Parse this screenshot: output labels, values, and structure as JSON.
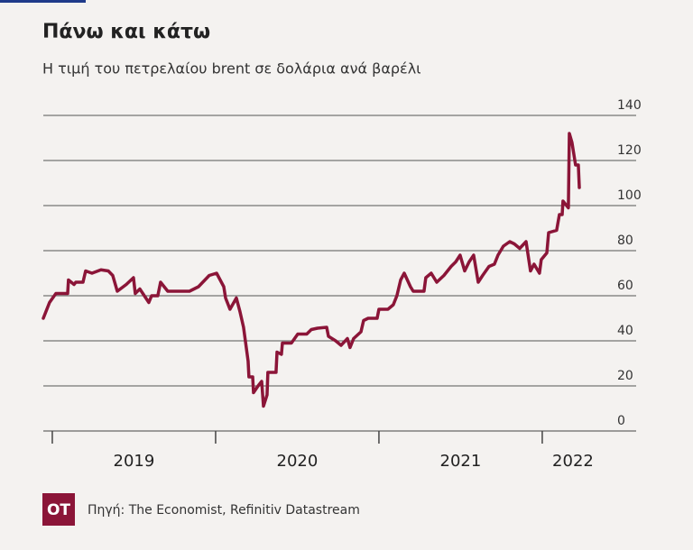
{
  "chart_data": {
    "type": "line",
    "title": "Πάνω και κάτω",
    "subtitle": "Η τιμή του πετρελαίου brent σε δολάρια ανά βαρέλι",
    "source": "Πηγή: The Economist, Refinitiv Datastream",
    "logo": "OT",
    "color": "#8b1538",
    "grid": true,
    "xlim": [
      2018.945,
      2022.575
    ],
    "xticks": [
      2019,
      2020,
      2021,
      2022
    ],
    "ylim": [
      0,
      140
    ],
    "yticks": [
      0,
      20,
      40,
      60,
      80,
      100,
      120,
      140
    ],
    "x": [
      2018.945,
      2018.983,
      2019.022,
      2019.094,
      2019.099,
      2019.133,
      2019.144,
      2019.188,
      2019.204,
      2019.243,
      2019.298,
      2019.343,
      2019.37,
      2019.398,
      2019.453,
      2019.497,
      2019.508,
      2019.536,
      2019.591,
      2019.608,
      2019.646,
      2019.663,
      2019.707,
      2019.84,
      2019.895,
      2019.961,
      2020.006,
      2020.05,
      2020.061,
      2020.088,
      2020.127,
      2020.149,
      2020.171,
      2020.199,
      2020.204,
      2020.227,
      2020.232,
      2020.26,
      2020.282,
      2020.293,
      2020.315,
      2020.32,
      2020.37,
      2020.376,
      2020.403,
      2020.409,
      2020.464,
      2020.503,
      2020.558,
      2020.586,
      2020.624,
      2020.68,
      2020.691,
      2020.735,
      2020.768,
      2020.807,
      2020.823,
      2020.845,
      2020.89,
      2020.906,
      2020.934,
      2020.989,
      2021.0,
      2021.055,
      2021.088,
      2021.11,
      2021.133,
      2021.155,
      2021.193,
      2021.21,
      2021.276,
      2021.287,
      2021.32,
      2021.354,
      2021.398,
      2021.442,
      2021.47,
      2021.497,
      2021.525,
      2021.552,
      2021.58,
      2021.608,
      2021.635,
      2021.674,
      2021.707,
      2021.729,
      2021.762,
      2021.801,
      2021.829,
      2021.862,
      2021.901,
      2021.928,
      2021.95,
      2021.983,
      2021.994,
      2022.028,
      2022.039,
      2022.088,
      2022.105,
      2022.122,
      2022.127,
      2022.16,
      2022.166,
      2022.182,
      2022.204,
      2022.221,
      2022.227
    ],
    "values": [
      50,
      57,
      61,
      61,
      67,
      65,
      66,
      66,
      71,
      70,
      71.5,
      71,
      69,
      62,
      65,
      68,
      61,
      63,
      57,
      60,
      60,
      66,
      62,
      62,
      64,
      69,
      70,
      64,
      59,
      54,
      59,
      53,
      46,
      31,
      24,
      24,
      17,
      20,
      22,
      11,
      16,
      26,
      26,
      35,
      34,
      39,
      39,
      43,
      43,
      45,
      45.6,
      46,
      42,
      40,
      38,
      41,
      37,
      41,
      44,
      49,
      50,
      50,
      54,
      54,
      56,
      60,
      67,
      70,
      64,
      62,
      62,
      68,
      70,
      66,
      69,
      73,
      75,
      78,
      71,
      75,
      78,
      66,
      69,
      73,
      74,
      78,
      82,
      84,
      83,
      81,
      84,
      71,
      74,
      70,
      76,
      79,
      88,
      89,
      96,
      96,
      102,
      99,
      132,
      128,
      118,
      118,
      108
    ]
  }
}
